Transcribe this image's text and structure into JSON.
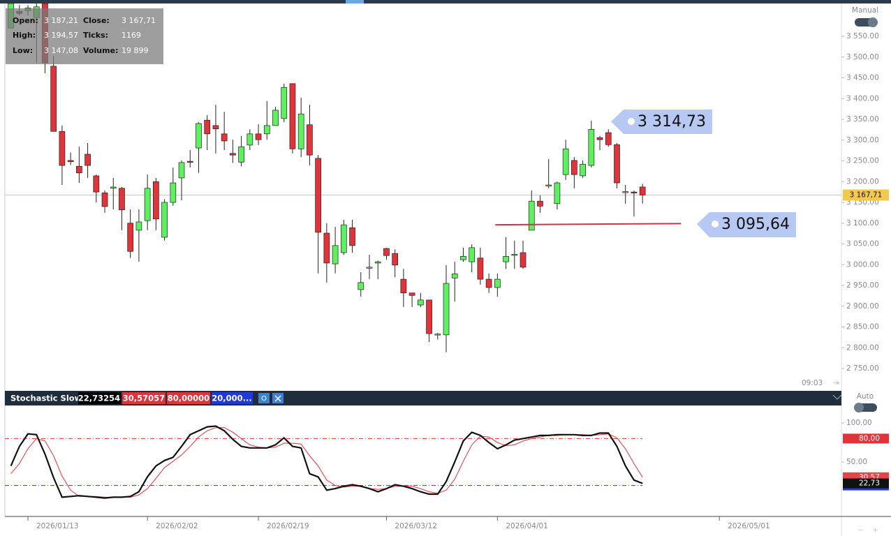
{
  "ohlc_panel": {
    "rows": [
      [
        "Open:",
        "3 187,21",
        "Close:",
        "3 167,71"
      ],
      [
        "High:",
        "3 194,57",
        "Ticks:",
        "1169"
      ],
      [
        "Low:",
        "3 147,08",
        "Volume:",
        "19 899"
      ]
    ]
  },
  "ui": {
    "mode_top": "Manual",
    "mode_bottom": "Auto",
    "time": "09:03"
  },
  "callouts": [
    "3 314,73",
    "3 095,64"
  ],
  "chart_data": [
    {
      "type": "candlestick",
      "up_color": "#5ef05e",
      "down_color": "#e0343a",
      "open": [
        3570,
        3610,
        3612,
        3595,
        3629,
        3478,
        3321,
        3251,
        3237,
        3266,
        3214,
        3173,
        3185,
        3184,
        3100,
        3083,
        3106,
        3200,
        3066,
        3150,
        3209,
        3249,
        3281,
        3348,
        3335,
        3315,
        3268,
        3247,
        3288,
        3315,
        3315,
        3335,
        3352,
        3436,
        3279,
        3337,
        3256,
        3076,
        3002,
        3029,
        3089,
        2940,
        2993,
        3004,
        3039,
        3027,
        2965,
        2932,
        2903,
        2915,
        2831,
        2831,
        2968,
        3012,
        3007,
        3016,
        2965,
        2945,
        3007,
        3024,
        3029,
        3083,
        3153,
        3190,
        3147,
        3217,
        3251,
        3214,
        3239,
        3306,
        3318,
        3289,
        3174,
        3175,
        3187.21
      ],
      "high": [
        3629,
        3625,
        3625,
        3629,
        3629,
        3503,
        3335,
        3270,
        3284,
        3293,
        3217,
        3179,
        3209,
        3187,
        3133,
        3133,
        3217,
        3209,
        3158,
        3234,
        3251,
        3276,
        3343,
        3360,
        3385,
        3368,
        3301,
        3310,
        3326,
        3338,
        3394,
        3380,
        3436,
        3436,
        3402,
        3385,
        3264,
        3100,
        3091,
        3108,
        3108,
        2982,
        3024,
        3010,
        3041,
        3037,
        2990,
        2932,
        2932,
        2915,
        2836,
        2999,
        3007,
        3041,
        3049,
        3041,
        2979,
        2979,
        3066,
        3058,
        3058,
        3179,
        3167,
        3254,
        3200,
        3301,
        3259,
        3251,
        3347,
        3310,
        3326,
        3293,
        3192,
        3179,
        3194.57
      ],
      "low": [
        3570,
        3600,
        3600,
        3486,
        3461,
        3321,
        3192,
        3240,
        3197,
        3209,
        3150,
        3125,
        3133,
        3083,
        3016,
        3007,
        3083,
        3083,
        3058,
        3142,
        3155,
        3234,
        3221,
        3276,
        3268,
        3276,
        3245,
        3237,
        3276,
        3288,
        3301,
        3335,
        3343,
        3268,
        3259,
        3239,
        2979,
        2957,
        2979,
        3024,
        3029,
        2923,
        2965,
        2965,
        3012,
        2970,
        2898,
        2898,
        2898,
        2814,
        2820,
        2789,
        2911,
        3007,
        2982,
        2952,
        2932,
        2923,
        2990,
        2990,
        2990,
        3083,
        3125,
        3184,
        3133,
        3204,
        3184,
        3209,
        3234,
        3276,
        3284,
        3184,
        3147,
        3116,
        3147.08
      ],
      "close": [
        3629,
        3605,
        3618,
        3621,
        3486,
        3321,
        3239,
        3248,
        3221,
        3239,
        3175,
        3140,
        3187,
        3132,
        3032,
        3103,
        3184,
        3110,
        3150,
        3197,
        3246,
        3248,
        3340,
        3315,
        3327,
        3298,
        3264,
        3284,
        3315,
        3301,
        3335,
        3372,
        3427,
        3279,
        3363,
        3264,
        3078,
        3004,
        3046,
        3096,
        3046,
        2957,
        2994,
        3007,
        3022,
        2999,
        2932,
        2926,
        2915,
        2834,
        2833,
        2955,
        2978,
        3020,
        3041,
        2965,
        2945,
        2965,
        3020,
        3025,
        2994,
        3153,
        3141,
        3192,
        3197,
        3279,
        3217,
        3242,
        3326,
        3301,
        3289,
        3197,
        3176,
        3173,
        3167.71
      ],
      "xlim": [
        -0.7,
        97.3
      ],
      "xticks": [
        {
          "value": 2,
          "label": "2026/01/13"
        },
        {
          "value": 16,
          "label": "2026/02/02"
        },
        {
          "value": 29,
          "label": "2026/02/19"
        },
        {
          "value": 44,
          "label": "2026/03/12"
        },
        {
          "value": 57,
          "label": "2026/04/01"
        },
        {
          "value": 83,
          "label": "2026/05/01"
        }
      ],
      "ylim": [
        2699.6,
        3629
      ],
      "yticks": [
        {
          "value": 2750,
          "label": "2 750.00"
        },
        {
          "value": 2800,
          "label": "2 800.00"
        },
        {
          "value": 2850,
          "label": "2 850.00"
        },
        {
          "value": 2900,
          "label": "2 900.00"
        },
        {
          "value": 2950,
          "label": "2 950.00"
        },
        {
          "value": 3000,
          "label": "3 000.00"
        },
        {
          "value": 3050,
          "label": "3 050.00"
        },
        {
          "value": 3100,
          "label": "3 100.00"
        },
        {
          "value": 3150,
          "label": "3 150.00"
        },
        {
          "value": 3200,
          "label": "3 200.00"
        },
        {
          "value": 3250,
          "label": "3 250.00"
        },
        {
          "value": 3300,
          "label": "3 300.00"
        },
        {
          "value": 3350,
          "label": "3 350.00"
        },
        {
          "value": 3400,
          "label": "3 400.00"
        },
        {
          "value": 3450,
          "label": "3 450.00"
        },
        {
          "value": 3500,
          "label": "3 500.00"
        },
        {
          "value": 3550,
          "label": "3 550.00"
        }
      ],
      "grid": false,
      "last_price": {
        "value": 3167.71,
        "label": "3 167,71",
        "color": "#f2c94c"
      },
      "trend_line": {
        "x": [
          56.75,
          78.5
        ],
        "y": [
          3096,
          3099
        ],
        "color": "#d0304a"
      }
    },
    {
      "type": "line",
      "title": "Stochastic Slow",
      "xlim": [
        -0.7,
        97.3
      ],
      "ylim": [
        -19.6,
        121.4
      ],
      "yticks": [
        {
          "value": 100,
          "label": "100.00"
        },
        {
          "value": 50,
          "label": "50.00"
        }
      ],
      "series": [
        {
          "color": "#111111",
          "header_label": "22,73254",
          "badge": "22,73",
          "values": [
            45,
            70,
            86,
            85,
            60,
            30,
            5,
            6,
            7,
            6,
            5,
            4,
            5,
            5,
            6,
            12,
            31,
            45,
            52,
            56,
            70,
            85,
            90,
            95,
            96,
            90,
            79,
            70,
            68,
            68,
            68,
            72,
            81,
            70,
            68,
            35,
            31,
            14,
            16,
            19,
            21,
            19,
            16,
            12,
            16,
            21,
            19,
            16,
            12,
            9,
            9,
            25,
            50,
            77,
            88,
            84,
            75,
            67,
            72,
            78,
            80,
            82,
            84,
            84,
            85,
            85,
            85,
            84,
            84,
            87,
            87,
            70,
            45,
            27,
            22.73254
          ]
        },
        {
          "color": "#e8424a",
          "header_label": "30,57057",
          "badge": "30,57",
          "values": [
            35,
            48,
            67,
            80,
            77,
            58,
            32,
            14,
            6,
            6,
            6,
            5,
            5,
            5,
            5,
            8,
            16,
            29,
            43,
            51,
            59,
            70,
            82,
            90,
            94,
            94,
            88,
            80,
            72,
            69,
            68,
            69,
            74,
            74,
            73,
            58,
            45,
            27,
            20,
            18,
            19,
            19,
            16,
            15,
            16,
            19,
            19,
            19,
            16,
            12,
            10,
            14,
            28,
            51,
            72,
            83,
            82,
            75,
            71,
            72,
            77,
            80,
            82,
            84,
            84,
            85,
            85,
            85,
            84,
            85,
            86,
            81,
            67,
            48,
            30.57057
          ]
        }
      ],
      "levels": [
        {
          "value": 80,
          "color": "#e0343a",
          "header_label": "80,00000",
          "badge": "80,00"
        },
        {
          "value": 20,
          "color": "#1f3ad6",
          "header_label": "20,000..."
        }
      ]
    }
  ]
}
